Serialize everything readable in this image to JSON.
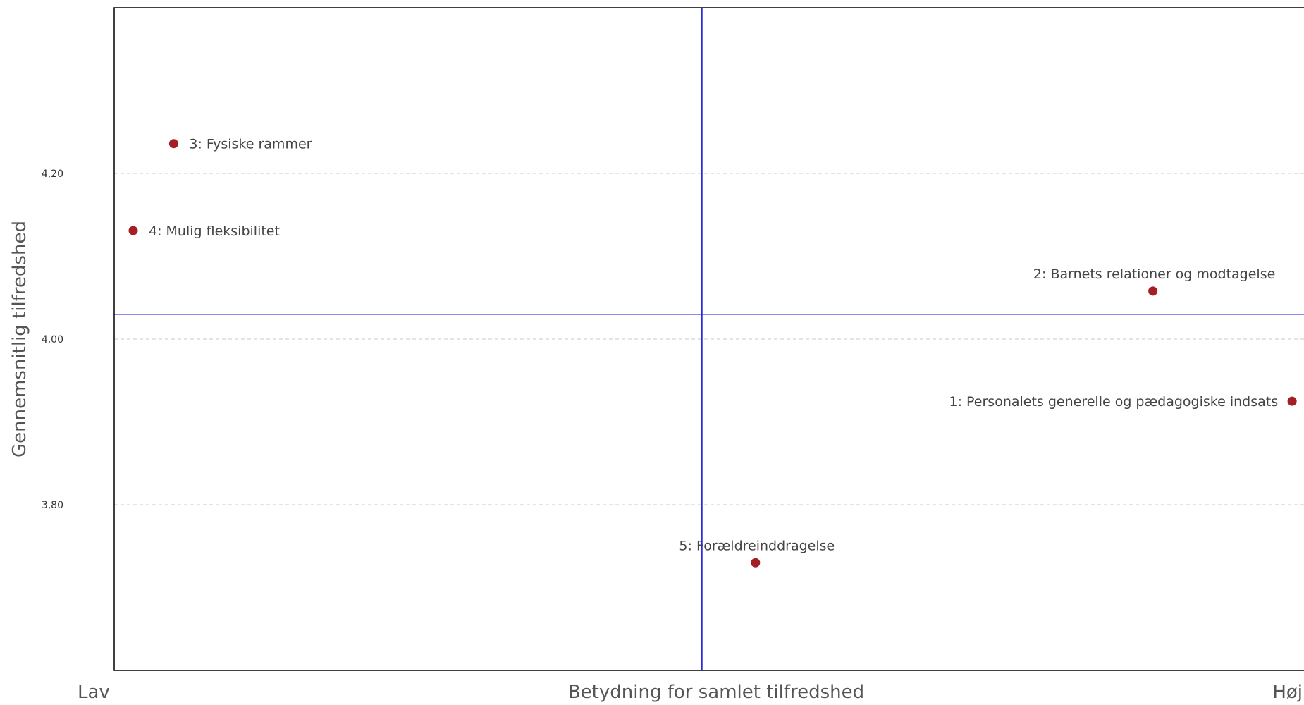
{
  "chart_data": {
    "type": "scatter",
    "title": "",
    "xlabel": "Betydning for samlet tilfredshed",
    "ylabel": "Gennemsnitlig tilfredshed",
    "x_axis_low_label": "Lav",
    "x_axis_high_label": "Høj",
    "ylim": [
      3.6,
      4.4
    ],
    "y_ticks": [
      3.8,
      4.0,
      4.2
    ],
    "y_tick_labels": [
      "3,80",
      "4,00",
      "4,20"
    ],
    "xlim": [
      0,
      100
    ],
    "x_reference": 49.4,
    "y_reference": 4.03,
    "grid": "horizontal dashed",
    "series": [
      {
        "points": [
          {
            "x": 99.0,
            "y": 3.925,
            "label": "1: Personalets generelle og pædagogiske indsats",
            "label_side": "left"
          },
          {
            "x": 87.3,
            "y": 4.058,
            "label": "2: Barnets relationer og modtagelse",
            "label_side": "above"
          },
          {
            "x": 5.0,
            "y": 4.236,
            "label": "3: Fysiske rammer",
            "label_side": "right"
          },
          {
            "x": 1.6,
            "y": 4.131,
            "label": "4: Mulig fleksibilitet",
            "label_side": "right"
          },
          {
            "x": 53.9,
            "y": 3.73,
            "label": "5: Forældreinddragelse",
            "label_side": "above"
          }
        ]
      }
    ]
  },
  "colors": {
    "point": "#a31f24",
    "reference_line": "#1a1ae0",
    "grid": "#c8c8c8",
    "frame": "#000000",
    "label_text": "#444444",
    "axis_title": "#555555"
  }
}
